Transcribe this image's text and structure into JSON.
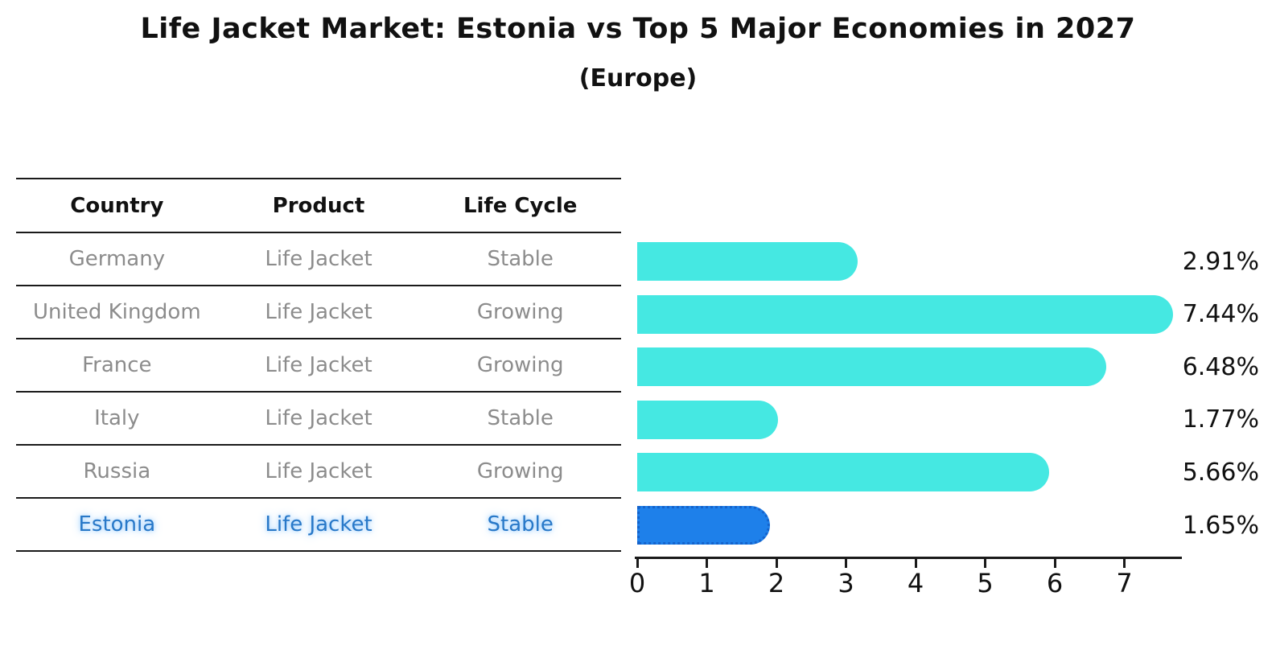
{
  "title": "Life Jacket Market: Estonia vs Top 5 Major Economies in 2027",
  "subtitle": "(Europe)",
  "table": {
    "headers": [
      "Country",
      "Product",
      "Life Cycle"
    ],
    "rows": [
      {
        "country": "Germany",
        "product": "Life Jacket",
        "life_cycle": "Stable",
        "highlight": false
      },
      {
        "country": "United Kingdom",
        "product": "Life Jacket",
        "life_cycle": "Growing",
        "highlight": false
      },
      {
        "country": "France",
        "product": "Life Jacket",
        "life_cycle": "Growing",
        "highlight": false
      },
      {
        "country": "Italy",
        "product": "Life Jacket",
        "life_cycle": "Stable",
        "highlight": false
      },
      {
        "country": "Russia",
        "product": "Life Jacket",
        "life_cycle": "Growing",
        "highlight": false
      },
      {
        "country": "Estonia",
        "product": "Life Jacket",
        "life_cycle": "Stable",
        "highlight": true
      }
    ]
  },
  "chart_data": {
    "type": "bar",
    "orientation": "horizontal",
    "categories": [
      "Germany",
      "United Kingdom",
      "France",
      "Italy",
      "Russia",
      "Estonia"
    ],
    "values": [
      2.91,
      7.44,
      6.48,
      1.77,
      5.66,
      1.65
    ],
    "value_labels": [
      "2.91%",
      "7.44%",
      "6.48%",
      "1.77%",
      "5.66%",
      "1.65%"
    ],
    "xticks": [
      "0",
      "1",
      "2",
      "3",
      "4",
      "5",
      "6",
      "7"
    ],
    "xlim": [
      0,
      7.8
    ],
    "grid": false,
    "legend": "none",
    "bar_color": "#45E8E2",
    "highlight_index": 5,
    "highlight_bar_color": "#1E80EA",
    "highlight_bar_border_color": "#1463CC",
    "highlight_text_color": "#2878C8",
    "row_text_color": "#8C8C8C",
    "axis_color": "#1A1A1A"
  }
}
